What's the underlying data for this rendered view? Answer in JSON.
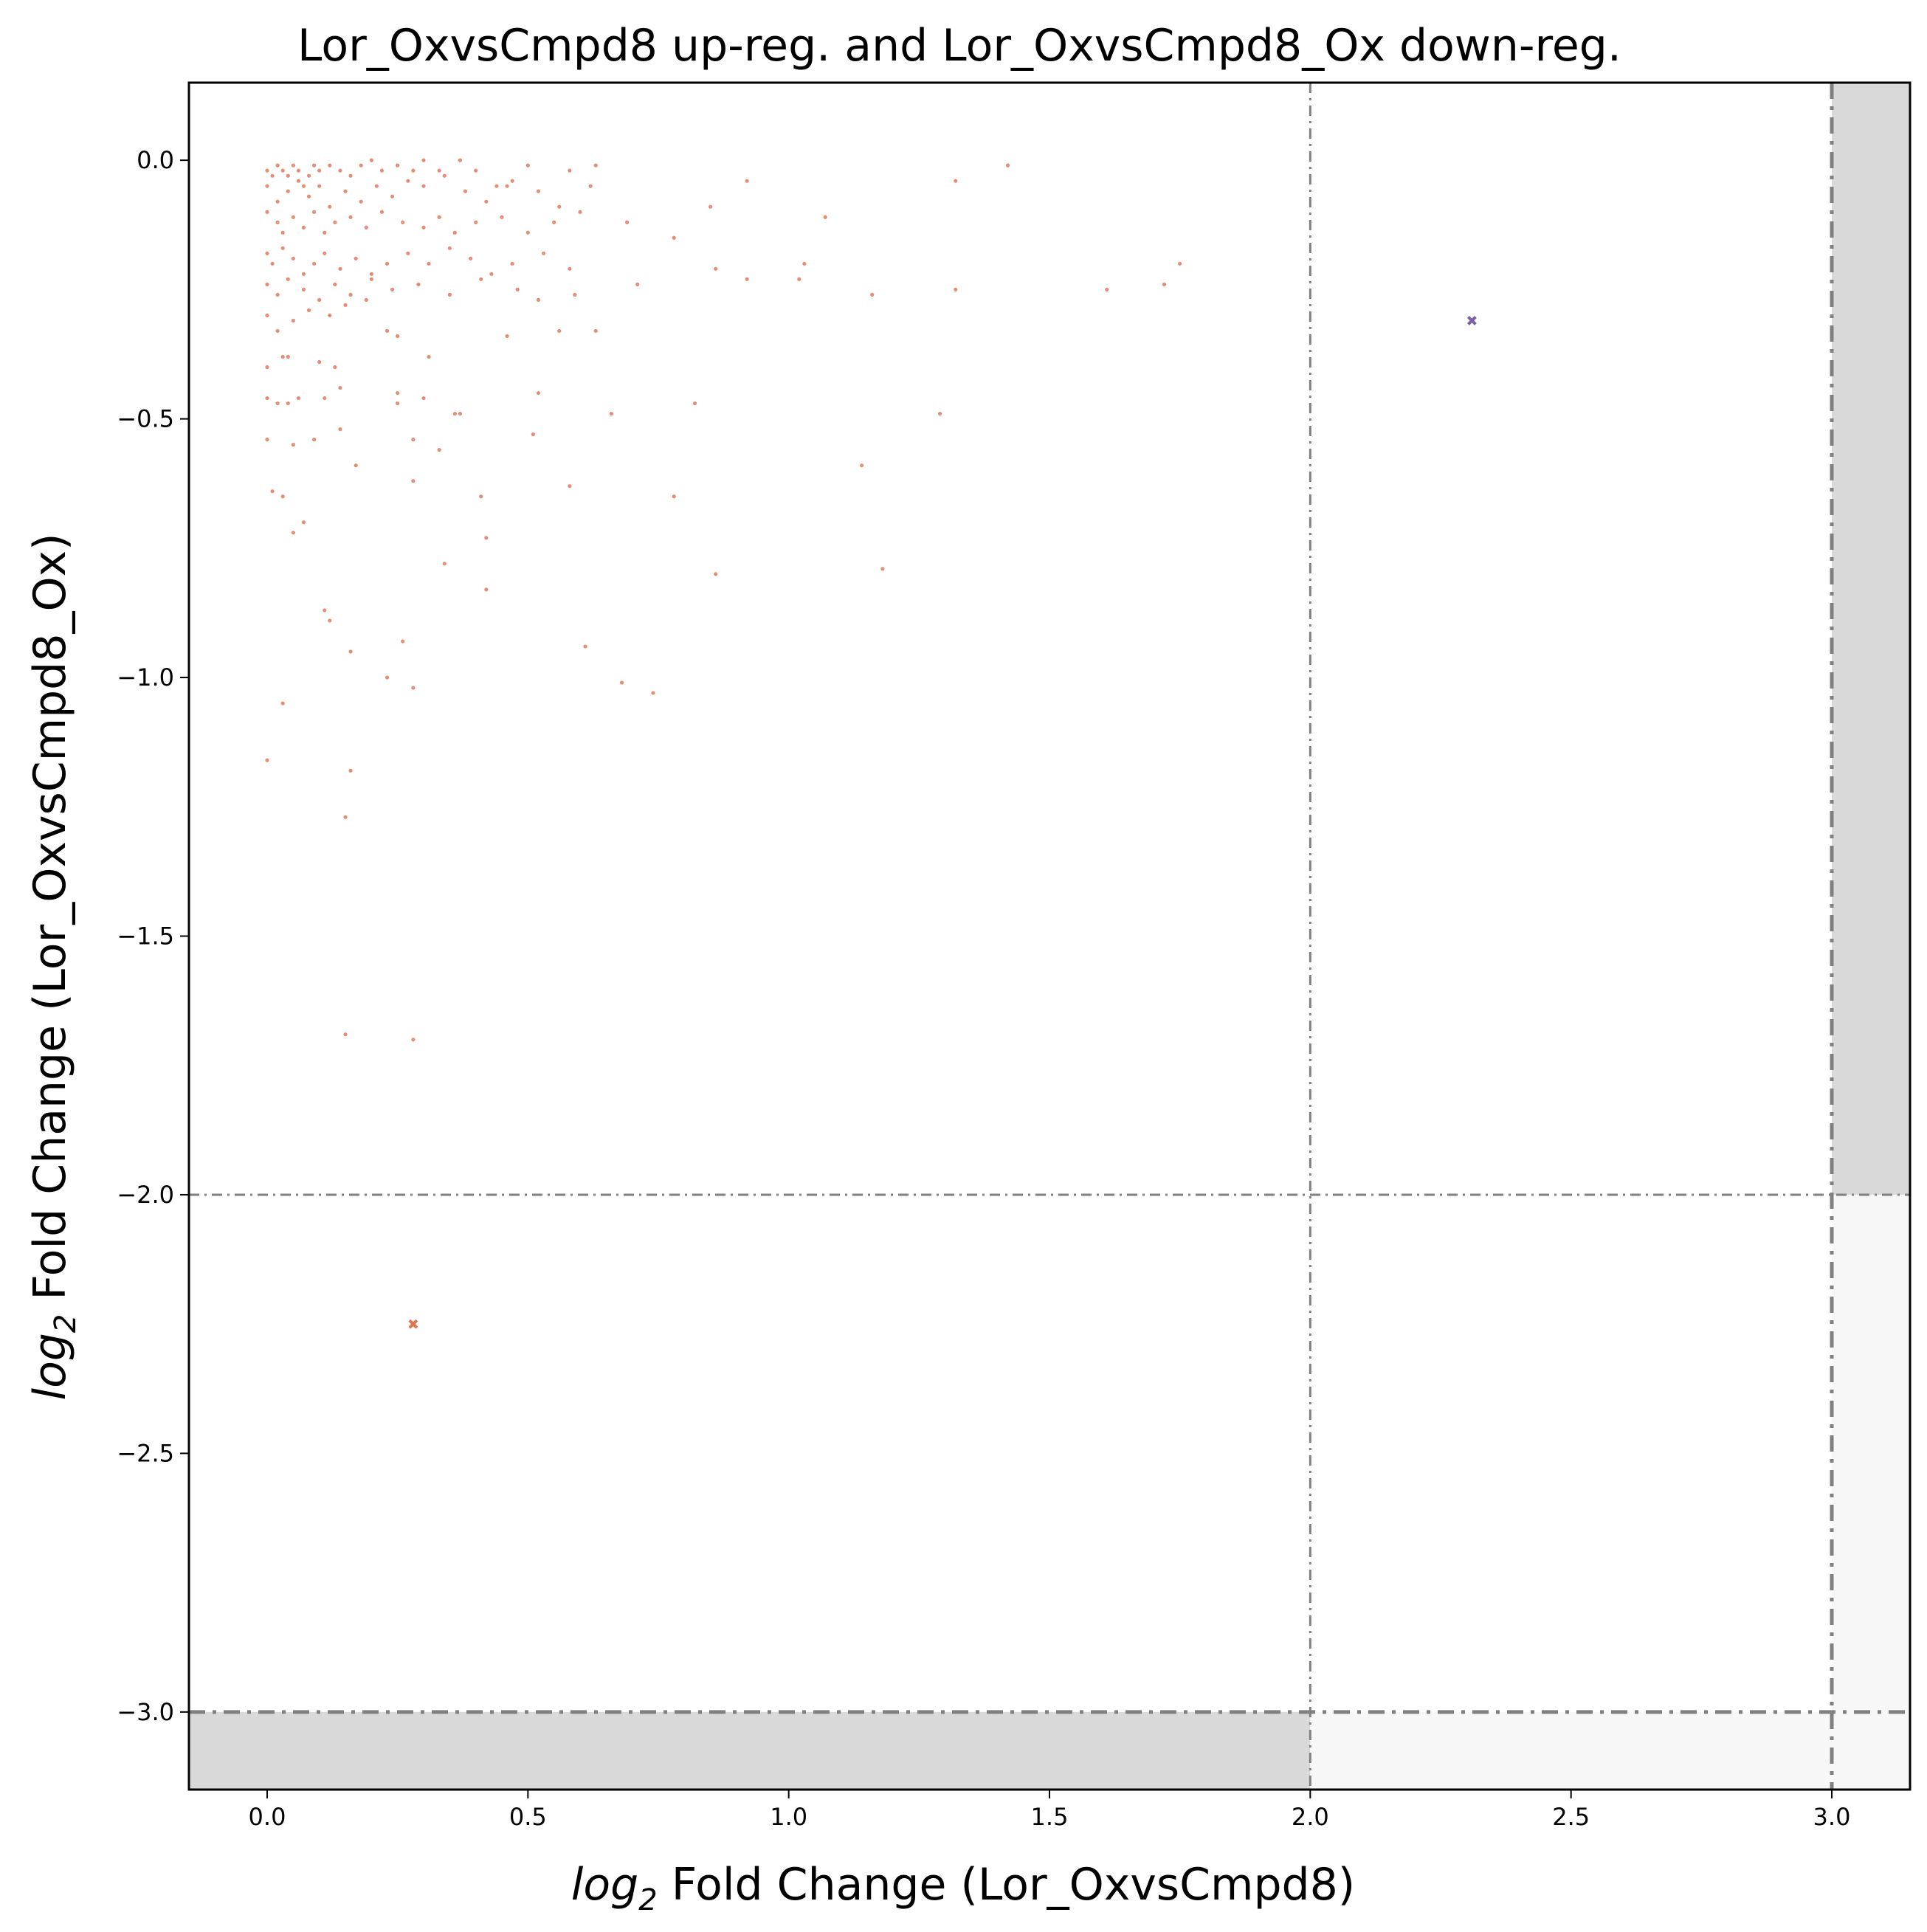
{
  "chart_data": {
    "type": "scatter",
    "title": "Lor_OxvsCmpd8 up-reg. and Lor_OxvsCmpd8_Ox down-reg.",
    "xlabel_prefix": "log",
    "xlabel_sub": "2",
    "xlabel_rest": " Fold Change (Lor_OxvsCmpd8)",
    "ylabel_prefix": "log",
    "ylabel_sub": "2",
    "ylabel_rest": " Fold Change (Lor_OxvsCmpd8_Ox)",
    "xlim": [
      -0.15,
      3.15
    ],
    "ylim": [
      -3.15,
      0.15
    ],
    "x_ticks": [
      "0.0",
      "0.5",
      "1.0",
      "1.5",
      "2.0",
      "2.5",
      "3.0"
    ],
    "x_tick_values": [
      0,
      0.5,
      1.0,
      1.5,
      2.0,
      2.5,
      3.0
    ],
    "y_ticks": [
      "0.0",
      "−0.5",
      "−1.0",
      "−1.5",
      "−2.0",
      "−2.5",
      "−3.0"
    ],
    "y_tick_values": [
      0,
      -0.5,
      -1.0,
      -1.5,
      -2.0,
      -2.5,
      -3.0
    ],
    "thresholds": {
      "x_inner": 2.0,
      "x_outer": 3.0,
      "y_inner": -2.0,
      "y_outer": -3.0
    },
    "colors": {
      "points": "#e07a5f",
      "highlight_up": "#7b5ea7",
      "highlight_down": "#e0754f",
      "shade_dark": "#d9d9d9",
      "shade_light": "#f7f7f7",
      "threshold_line": "#808080"
    },
    "series": [
      {
        "marker": "dot",
        "points": [
          [
            0.0,
            -0.02
          ],
          [
            0.01,
            -0.03
          ],
          [
            0.02,
            -0.01
          ],
          [
            0.03,
            -0.02
          ],
          [
            0.04,
            -0.03
          ],
          [
            0.05,
            -0.01
          ],
          [
            0.06,
            -0.02
          ],
          [
            0.07,
            -0.05
          ],
          [
            0.08,
            -0.03
          ],
          [
            0.09,
            -0.01
          ],
          [
            0.1,
            -0.02
          ],
          [
            0.12,
            -0.01
          ],
          [
            0.14,
            -0.02
          ],
          [
            0.16,
            -0.03
          ],
          [
            0.18,
            -0.01
          ],
          [
            0.2,
            -0.0
          ],
          [
            0.22,
            -0.02
          ],
          [
            0.25,
            -0.01
          ],
          [
            0.28,
            -0.02
          ],
          [
            0.3,
            -0.0
          ],
          [
            0.33,
            -0.02
          ],
          [
            0.37,
            -0.0
          ],
          [
            0.4,
            -0.02
          ],
          [
            0.44,
            -0.05
          ],
          [
            0.47,
            -0.04
          ],
          [
            0.5,
            -0.01
          ],
          [
            0.58,
            -0.02
          ],
          [
            0.63,
            -0.01
          ],
          [
            0.0,
            -0.05
          ],
          [
            0.02,
            -0.08
          ],
          [
            0.04,
            -0.06
          ],
          [
            0.06,
            -0.04
          ],
          [
            0.08,
            -0.07
          ],
          [
            0.1,
            -0.05
          ],
          [
            0.12,
            -0.09
          ],
          [
            0.15,
            -0.06
          ],
          [
            0.18,
            -0.08
          ],
          [
            0.21,
            -0.05
          ],
          [
            0.24,
            -0.07
          ],
          [
            0.27,
            -0.04
          ],
          [
            0.3,
            -0.05
          ],
          [
            0.34,
            -0.03
          ],
          [
            0.38,
            -0.06
          ],
          [
            0.42,
            -0.08
          ],
          [
            0.46,
            -0.05
          ],
          [
            0.52,
            -0.06
          ],
          [
            0.56,
            -0.09
          ],
          [
            0.62,
            -0.05
          ],
          [
            0.0,
            -0.1
          ],
          [
            0.02,
            -0.12
          ],
          [
            0.03,
            -0.14
          ],
          [
            0.05,
            -0.11
          ],
          [
            0.07,
            -0.13
          ],
          [
            0.09,
            -0.1
          ],
          [
            0.11,
            -0.14
          ],
          [
            0.13,
            -0.12
          ],
          [
            0.16,
            -0.11
          ],
          [
            0.19,
            -0.13
          ],
          [
            0.22,
            -0.1
          ],
          [
            0.26,
            -0.12
          ],
          [
            0.3,
            -0.13
          ],
          [
            0.33,
            -0.11
          ],
          [
            0.36,
            -0.14
          ],
          [
            0.4,
            -0.12
          ],
          [
            0.45,
            -0.11
          ],
          [
            0.5,
            -0.14
          ],
          [
            0.55,
            -0.12
          ],
          [
            0.6,
            -0.1
          ],
          [
            0.69,
            -0.12
          ],
          [
            0.78,
            -0.15
          ],
          [
            0.85,
            -0.09
          ],
          [
            0.92,
            -0.04
          ],
          [
            1.07,
            -0.11
          ],
          [
            1.32,
            -0.04
          ],
          [
            1.42,
            -0.01
          ],
          [
            0.0,
            -0.18
          ],
          [
            0.01,
            -0.2
          ],
          [
            0.03,
            -0.17
          ],
          [
            0.05,
            -0.19
          ],
          [
            0.07,
            -0.22
          ],
          [
            0.09,
            -0.2
          ],
          [
            0.11,
            -0.18
          ],
          [
            0.14,
            -0.21
          ],
          [
            0.17,
            -0.19
          ],
          [
            0.2,
            -0.22
          ],
          [
            0.23,
            -0.2
          ],
          [
            0.27,
            -0.18
          ],
          [
            0.31,
            -0.2
          ],
          [
            0.35,
            -0.17
          ],
          [
            0.39,
            -0.19
          ],
          [
            0.43,
            -0.22
          ],
          [
            0.47,
            -0.2
          ],
          [
            0.53,
            -0.18
          ],
          [
            0.58,
            -0.21
          ],
          [
            0.0,
            -0.24
          ],
          [
            0.02,
            -0.26
          ],
          [
            0.04,
            -0.23
          ],
          [
            0.07,
            -0.25
          ],
          [
            0.1,
            -0.27
          ],
          [
            0.13,
            -0.24
          ],
          [
            0.16,
            -0.26
          ],
          [
            0.2,
            -0.23
          ],
          [
            0.24,
            -0.25
          ],
          [
            0.29,
            -0.24
          ],
          [
            0.35,
            -0.26
          ],
          [
            0.41,
            -0.23
          ],
          [
            0.48,
            -0.25
          ],
          [
            0.52,
            -0.27
          ],
          [
            0.59,
            -0.26
          ],
          [
            0.71,
            -0.24
          ],
          [
            0.86,
            -0.21
          ],
          [
            0.92,
            -0.23
          ],
          [
            1.02,
            -0.23
          ],
          [
            1.03,
            -0.2
          ],
          [
            1.16,
            -0.26
          ],
          [
            1.32,
            -0.25
          ],
          [
            1.61,
            -0.25
          ],
          [
            1.72,
            -0.24
          ],
          [
            1.75,
            -0.2
          ],
          [
            0.0,
            -0.3
          ],
          [
            0.02,
            -0.33
          ],
          [
            0.05,
            -0.31
          ],
          [
            0.08,
            -0.29
          ],
          [
            0.12,
            -0.3
          ],
          [
            0.15,
            -0.28
          ],
          [
            0.19,
            -0.27
          ],
          [
            0.23,
            -0.33
          ],
          [
            0.25,
            -0.34
          ],
          [
            0.46,
            -0.34
          ],
          [
            0.56,
            -0.33
          ],
          [
            0.63,
            -0.33
          ],
          [
            0.0,
            -0.4
          ],
          [
            0.03,
            -0.38
          ],
          [
            0.04,
            -0.38
          ],
          [
            0.1,
            -0.39
          ],
          [
            0.13,
            -0.4
          ],
          [
            0.31,
            -0.38
          ],
          [
            0.0,
            -0.46
          ],
          [
            0.02,
            -0.47
          ],
          [
            0.04,
            -0.47
          ],
          [
            0.06,
            -0.46
          ],
          [
            0.11,
            -0.46
          ],
          [
            0.14,
            -0.44
          ],
          [
            0.25,
            -0.45
          ],
          [
            0.25,
            -0.47
          ],
          [
            0.3,
            -0.46
          ],
          [
            0.36,
            -0.49
          ],
          [
            0.37,
            -0.49
          ],
          [
            0.52,
            -0.45
          ],
          [
            0.0,
            -0.54
          ],
          [
            0.05,
            -0.55
          ],
          [
            0.09,
            -0.54
          ],
          [
            0.14,
            -0.52
          ],
          [
            0.28,
            -0.54
          ],
          [
            0.33,
            -0.56
          ],
          [
            0.51,
            -0.53
          ],
          [
            0.66,
            -0.49
          ],
          [
            0.82,
            -0.47
          ],
          [
            1.29,
            -0.49
          ],
          [
            0.17,
            -0.59
          ],
          [
            0.28,
            -0.62
          ],
          [
            0.41,
            -0.65
          ],
          [
            0.58,
            -0.63
          ],
          [
            0.78,
            -0.65
          ],
          [
            1.14,
            -0.59
          ],
          [
            0.01,
            -0.64
          ],
          [
            0.03,
            -0.65
          ],
          [
            0.05,
            -0.72
          ],
          [
            0.07,
            -0.7
          ],
          [
            0.42,
            -0.73
          ],
          [
            0.34,
            -0.78
          ],
          [
            0.42,
            -0.83
          ],
          [
            0.86,
            -0.8
          ],
          [
            1.18,
            -0.79
          ],
          [
            0.11,
            -0.87
          ],
          [
            0.12,
            -0.89
          ],
          [
            0.16,
            -0.95
          ],
          [
            0.26,
            -0.93
          ],
          [
            0.61,
            -0.94
          ],
          [
            0.23,
            -1.0
          ],
          [
            0.28,
            -1.02
          ],
          [
            0.68,
            -1.01
          ],
          [
            0.74,
            -1.03
          ],
          [
            0.03,
            -1.05
          ],
          [
            0.0,
            -1.16
          ],
          [
            0.16,
            -1.18
          ],
          [
            0.15,
            -1.27
          ],
          [
            0.15,
            -1.69
          ],
          [
            0.28,
            -1.7
          ]
        ]
      },
      {
        "marker": "x",
        "name": "",
        "points": [
          [
            2.31,
            -0.31
          ]
        ],
        "color_key": "highlight_up"
      },
      {
        "marker": "x",
        "name": "",
        "points": [
          [
            0.28,
            -2.25
          ]
        ],
        "color_key": "highlight_down"
      }
    ]
  }
}
